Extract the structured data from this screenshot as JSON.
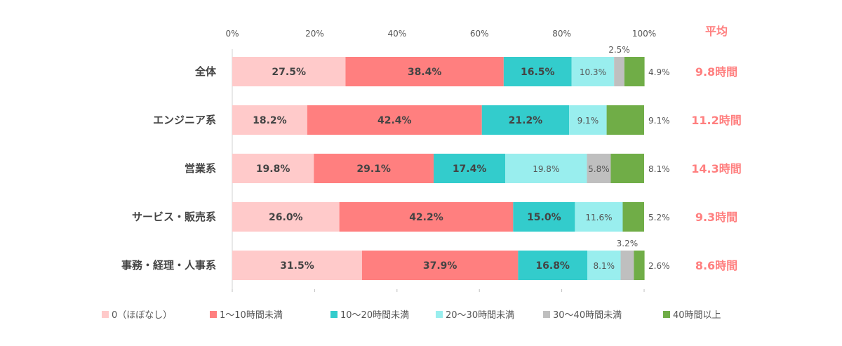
{
  "chart_data": {
    "type": "bar",
    "orientation": "horizontal",
    "stacked": "percent",
    "x_ticks": [
      "0%",
      "20%",
      "40%",
      "60%",
      "80%",
      "100%"
    ],
    "xlim": [
      0,
      100
    ],
    "categories": [
      "全体",
      "エンジニア系",
      "営業系",
      "サービス・販売系",
      "事務・経理・人事系"
    ],
    "series": [
      {
        "name": "0（ほぼなし）",
        "color": "#FFCACA",
        "values": [
          27.5,
          18.2,
          19.8,
          26.0,
          31.5
        ],
        "labels": [
          "27.5%",
          "18.2%",
          "19.8%",
          "26.0%",
          "31.5%"
        ]
      },
      {
        "name": "1〜10時間未満",
        "color": "#FF7F7F",
        "values": [
          38.4,
          42.4,
          29.1,
          42.2,
          37.9
        ],
        "labels": [
          "38.4%",
          "42.4%",
          "29.1%",
          "42.2%",
          "37.9%"
        ]
      },
      {
        "name": "10〜20時間未満",
        "color": "#33CCCC",
        "values": [
          16.5,
          21.2,
          17.4,
          15.0,
          16.8
        ],
        "labels": [
          "16.5%",
          "21.2%",
          "17.4%",
          "15.0%",
          "16.8%"
        ]
      },
      {
        "name": "20〜30時間未満",
        "color": "#99EEEE",
        "values": [
          10.3,
          9.1,
          19.8,
          11.6,
          8.1
        ],
        "labels": [
          "10.3%",
          "9.1%",
          "19.8%",
          "11.6%",
          "8.1%"
        ]
      },
      {
        "name": "30〜40時間未満",
        "color": "#BFBFBF",
        "values": [
          2.5,
          0.0,
          5.8,
          0.0,
          3.2
        ],
        "labels": [
          "2.5%",
          "",
          "5.8%",
          "",
          "3.2%"
        ]
      },
      {
        "name": "40時間以上",
        "color": "#70AD47",
        "values": [
          4.9,
          9.1,
          8.1,
          5.2,
          2.6
        ],
        "labels": [
          "4.9%",
          "9.1%",
          "8.1%",
          "5.2%",
          "2.6%"
        ]
      }
    ],
    "average": {
      "title": "平均",
      "values": [
        "9.8時間",
        "11.2時間",
        "14.3時間",
        "9.3時間",
        "8.6時間"
      ],
      "color": "#FF7F7F"
    },
    "legend_position": "bottom",
    "grid": false
  }
}
